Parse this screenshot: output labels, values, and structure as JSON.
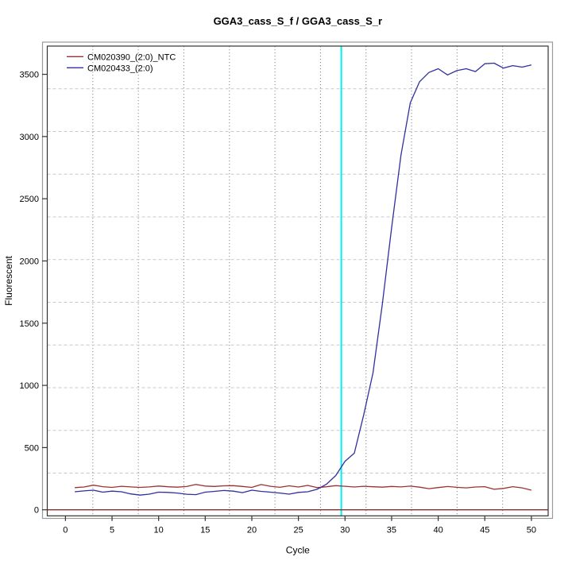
{
  "chart_data": {
    "type": "line",
    "title": "GGA3_cass_S_f / GGA3_cass_S_r",
    "xlabel": "Cycle",
    "ylabel": "Fluorescent",
    "xlim": [
      -1.95,
      51.8
    ],
    "ylim": [
      -48.5,
      3727
    ],
    "x_ticks": [
      0,
      5,
      10,
      15,
      20,
      25,
      30,
      35,
      40,
      45,
      50
    ],
    "y_ticks": [
      0,
      500,
      1000,
      1500,
      2000,
      2500,
      3000,
      3500
    ],
    "grid": {
      "on": true,
      "nx": 11,
      "ny": 11
    },
    "legend_position": "top-left",
    "x": [
      1,
      2,
      3,
      4,
      5,
      6,
      7,
      8,
      9,
      10,
      11,
      12,
      13,
      14,
      15,
      16,
      17,
      18,
      19,
      20,
      21,
      22,
      23,
      24,
      25,
      26,
      27,
      28,
      29,
      30,
      31,
      32,
      33,
      34,
      35,
      36,
      37,
      38,
      39,
      40,
      41,
      42,
      43,
      44,
      45,
      46,
      47,
      48,
      49,
      50
    ],
    "series": [
      {
        "name": "CM020390_(2:0)_NTC",
        "color": "#993333",
        "values": [
          178,
          183,
          198,
          186,
          180,
          189,
          184,
          180,
          184,
          191,
          185,
          182,
          187,
          204,
          191,
          188,
          193,
          194,
          188,
          180,
          203,
          189,
          181,
          193,
          183,
          196,
          178,
          185,
          194,
          189,
          183,
          189,
          185,
          182,
          188,
          184,
          190,
          182,
          170,
          179,
          187,
          181,
          176,
          183,
          186,
          165,
          172,
          186,
          176,
          158
        ]
      },
      {
        "name": "CM020433_(2:0)",
        "color": "#30309F",
        "values": [
          145,
          152,
          158,
          142,
          150,
          145,
          128,
          118,
          126,
          142,
          140,
          135,
          125,
          122,
          142,
          148,
          155,
          150,
          138,
          158,
          148,
          142,
          135,
          126,
          140,
          145,
          165,
          205,
          275,
          390,
          455,
          760,
          1100,
          1650,
          2265,
          2850,
          3270,
          3440,
          3515,
          3545,
          3495,
          3530,
          3545,
          3522,
          3585,
          3590,
          3550,
          3570,
          3558,
          3575
        ]
      }
    ],
    "annotations": {
      "threshold_line": {
        "y": 0,
        "color": "#8F2B2B"
      },
      "ct_line": {
        "x": 29.6,
        "color": "#00EEEE"
      }
    },
    "colors": {
      "plot_border": "#333333",
      "outer_frame": "#9a9a9a",
      "grid_vertical": "#8c8c8c",
      "grid_horizontal": "#c8c8c8",
      "background": "#ffffff"
    }
  }
}
